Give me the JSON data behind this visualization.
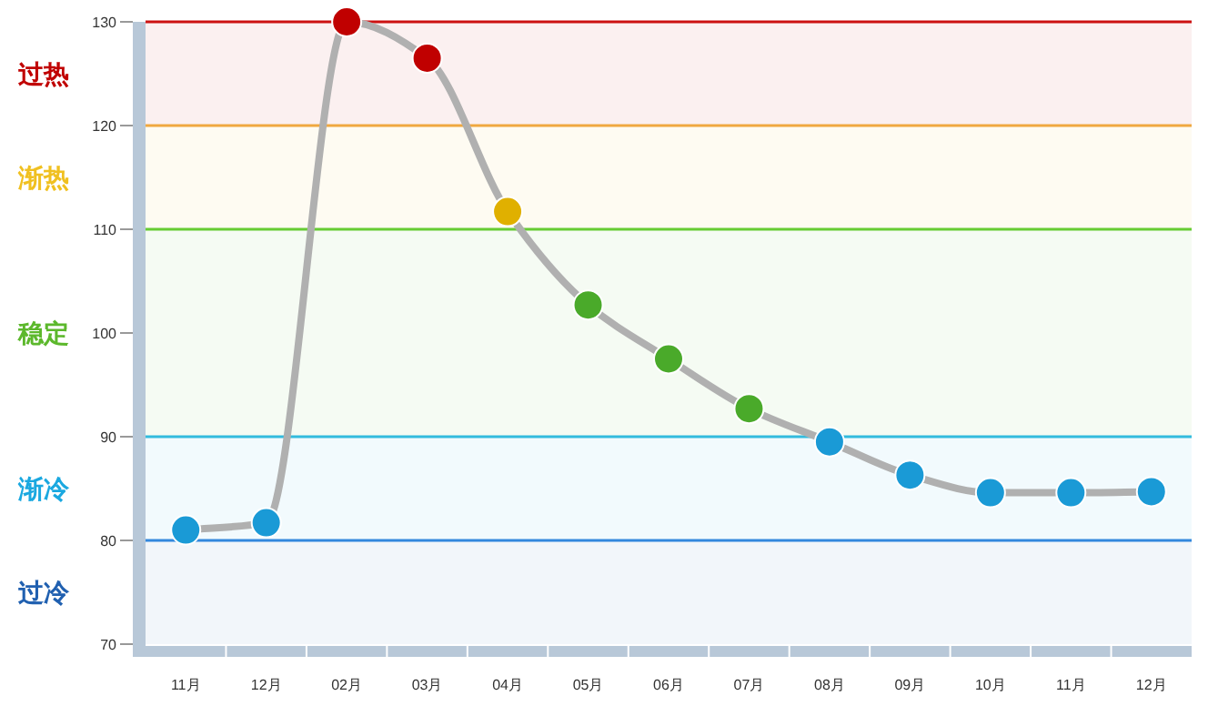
{
  "chart_data": {
    "type": "line",
    "categories": [
      "11月",
      "12月",
      "02月",
      "03月",
      "04月",
      "05月",
      "06月",
      "07月",
      "08月",
      "09月",
      "10月",
      "11月",
      "12月"
    ],
    "series": [
      {
        "color": "#b0b0b0",
        "values": [
          81,
          81.7,
          130,
          126.5,
          111.7,
          102.7,
          97.5,
          92.7,
          89.5,
          86.3,
          84.6,
          84.6,
          84.7
        ],
        "colors": [
          "#1a9ad6",
          "#1a9ad6",
          "#c00000",
          "#c00000",
          "#e0b000",
          "#4aaa2a",
          "#4aaa2a",
          "#4aaa2a",
          "#1a9ad6",
          "#1a9ad6",
          "#1a9ad6",
          "#1a9ad6",
          "#1a9ad6"
        ]
      }
    ],
    "ylim": [
      70,
      130
    ],
    "yticks": [
      70,
      80,
      90,
      100,
      110,
      120,
      130
    ],
    "marker": "circle",
    "grid": false,
    "ref_lines": [
      {
        "axis": "y",
        "value": 130,
        "color": "#cc1111"
      },
      {
        "axis": "y",
        "value": 120,
        "color": "#f0a840"
      },
      {
        "axis": "y",
        "value": 110,
        "color": "#66cc33"
      },
      {
        "axis": "y",
        "value": 90,
        "color": "#33bbdd"
      },
      {
        "axis": "y",
        "value": 80,
        "color": "#3388dd"
      }
    ],
    "bands": [
      {
        "axis": "y",
        "from": 120,
        "to": 130,
        "label": "过热",
        "color": "#c00000"
      },
      {
        "axis": "y",
        "from": 110,
        "to": 120,
        "label": "渐热",
        "color": "#f0c020"
      },
      {
        "axis": "y",
        "from": 90,
        "to": 110,
        "label": "稳定",
        "color": "#5cb82c"
      },
      {
        "axis": "y",
        "from": 80,
        "to": 90,
        "label": "渐冷",
        "color": "#1aa8e0"
      },
      {
        "axis": "y",
        "from": 70,
        "to": 80,
        "label": "过冷",
        "color": "#2060b0"
      }
    ]
  }
}
